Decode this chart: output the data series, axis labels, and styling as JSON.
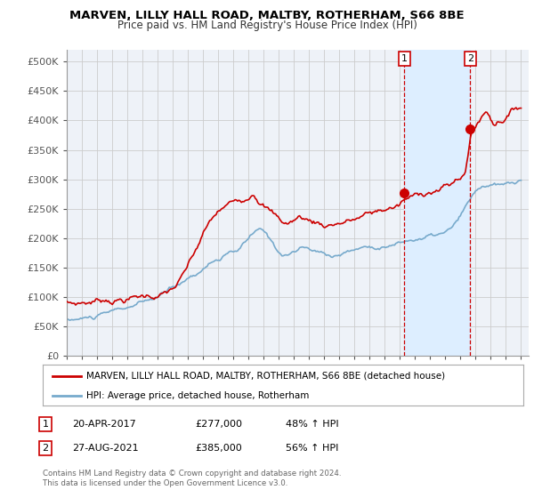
{
  "title": "MARVEN, LILLY HALL ROAD, MALTBY, ROTHERHAM, S66 8BE",
  "subtitle": "Price paid vs. HM Land Registry's House Price Index (HPI)",
  "ylabel_ticks": [
    "£0",
    "£50K",
    "£100K",
    "£150K",
    "£200K",
    "£250K",
    "£300K",
    "£350K",
    "£400K",
    "£450K",
    "£500K"
  ],
  "ytick_values": [
    0,
    50000,
    100000,
    150000,
    200000,
    250000,
    300000,
    350000,
    400000,
    450000,
    500000
  ],
  "ylim": [
    0,
    520000
  ],
  "xlim_start": 1995.0,
  "xlim_end": 2025.5,
  "transaction1_x": 2017.3,
  "transaction1_y": 277000,
  "transaction2_x": 2021.65,
  "transaction2_y": 385000,
  "red_line_color": "#cc0000",
  "blue_line_color": "#77aacc",
  "shade_color": "#ddeeff",
  "marker_color": "#cc0000",
  "background_color": "#eef2f8",
  "grid_color": "#cccccc",
  "legend_label_red": "MARVEN, LILLY HALL ROAD, MALTBY, ROTHERHAM, S66 8BE (detached house)",
  "legend_label_blue": "HPI: Average price, detached house, Rotherham",
  "table_row1": [
    "1",
    "20-APR-2017",
    "£277,000",
    "48% ↑ HPI"
  ],
  "table_row2": [
    "2",
    "27-AUG-2021",
    "£385,000",
    "56% ↑ HPI"
  ],
  "copyright_text": "Contains HM Land Registry data © Crown copyright and database right 2024.\nThis data is licensed under the Open Government Licence v3.0."
}
